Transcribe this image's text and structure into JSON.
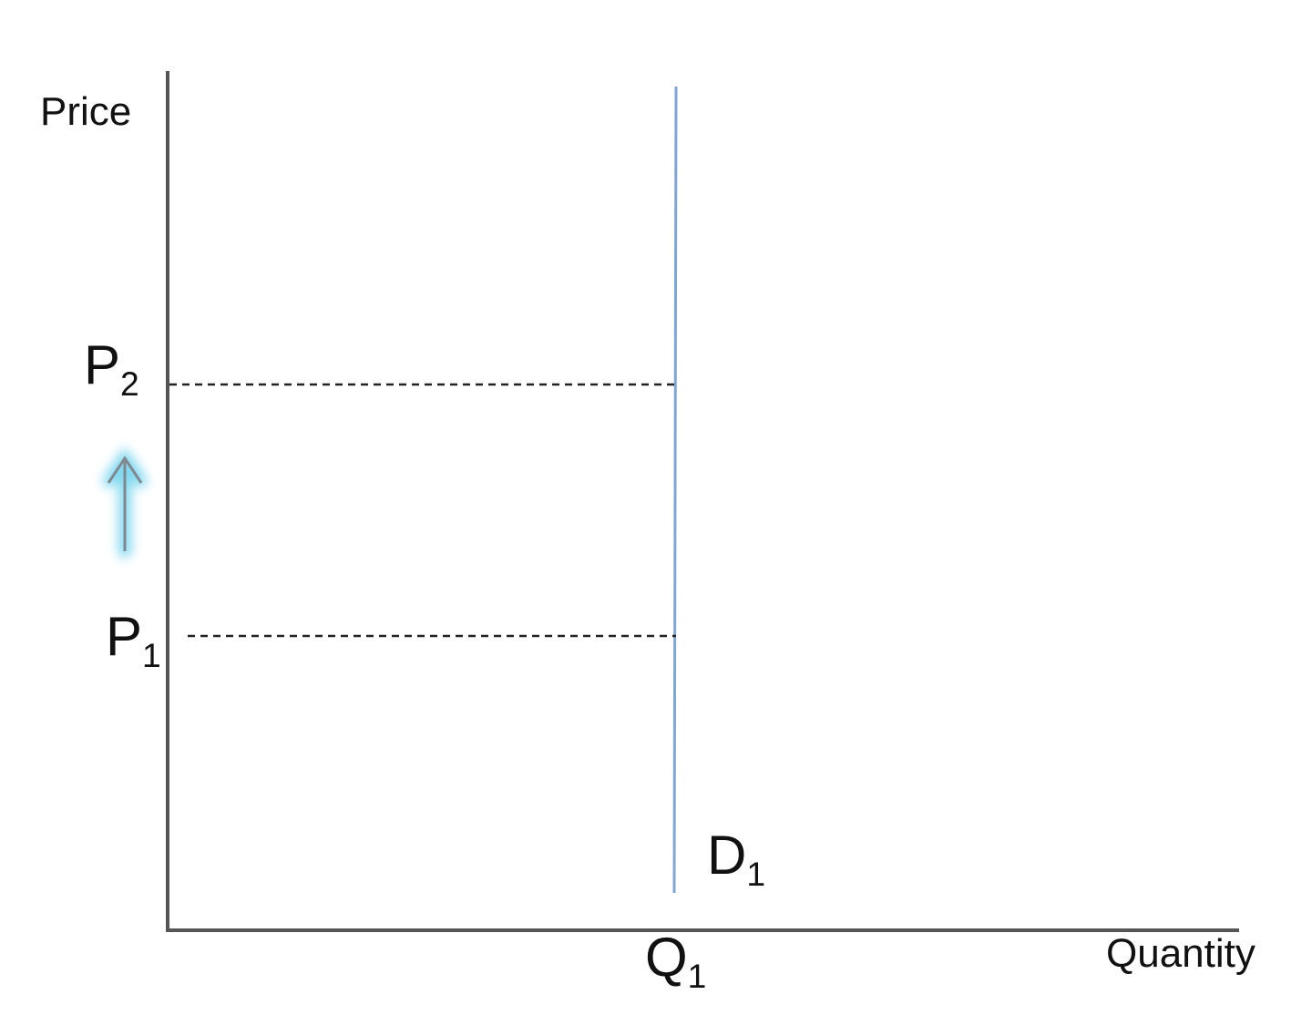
{
  "axes": {
    "y_label": "Price",
    "x_label": "Quantity"
  },
  "price_levels": [
    {
      "symbol": "P",
      "subscript": "2"
    },
    {
      "symbol": "P",
      "subscript": "1"
    }
  ],
  "quantity_level": {
    "symbol": "Q",
    "subscript": "1"
  },
  "demand_curve": {
    "symbol": "D",
    "subscript": "1",
    "shape": "vertical (perfectly inelastic)",
    "color": "#7FA6D6"
  },
  "arrow": {
    "direction": "up",
    "color": "#808890",
    "glow_color": "#7FD8F0"
  }
}
